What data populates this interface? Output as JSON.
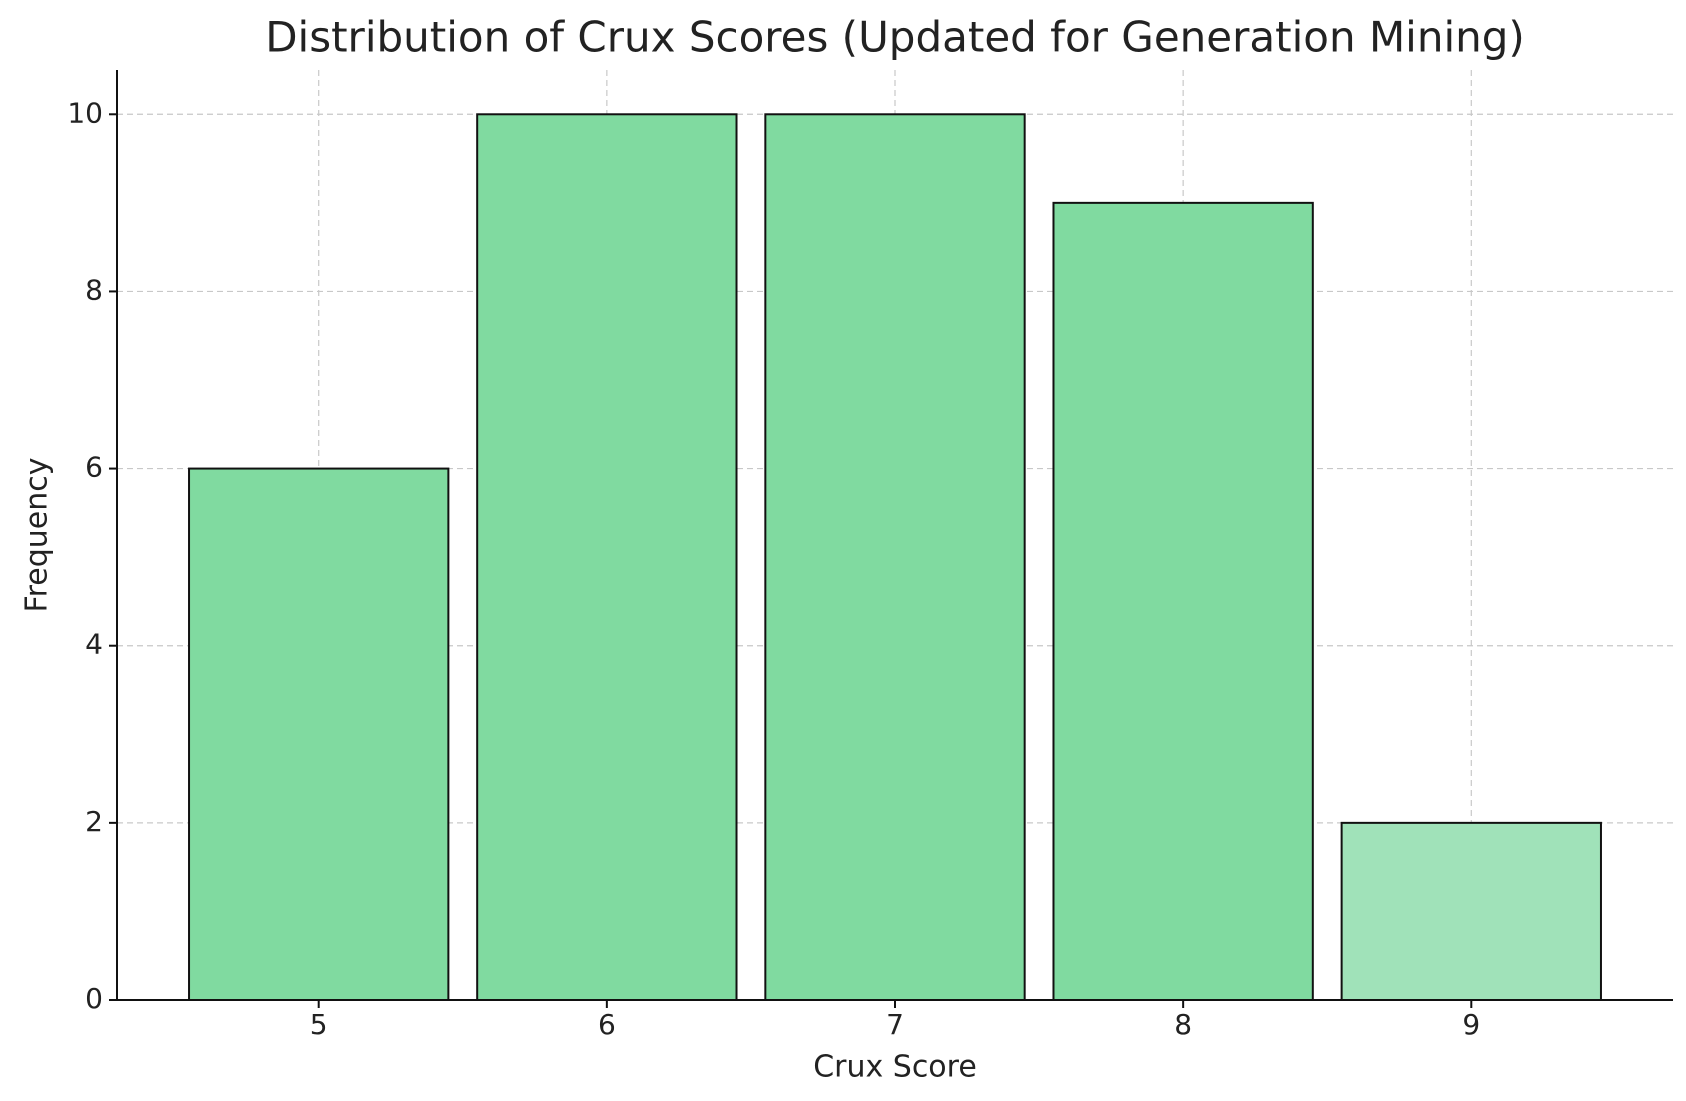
{
  "chart_data": {
    "type": "bar",
    "title": "Distribution of Crux Scores (Updated for Generation Mining)",
    "x_label": "Crux Score",
    "y_label": "Frequency",
    "x": [
      5,
      6,
      7,
      8,
      9
    ],
    "values": [
      6,
      10,
      10,
      9,
      2
    ],
    "colors": [
      "#80daa0",
      "#80daa0",
      "#80daa0",
      "#80daa0",
      "#a0e2b9"
    ],
    "xlim": [
      4.3,
      9.7
    ],
    "xticks": [
      5,
      6,
      7,
      8,
      9
    ],
    "ylim": [
      0,
      10.5
    ],
    "yticks": [
      0,
      2,
      4,
      6,
      8,
      10
    ],
    "grid": true
  }
}
